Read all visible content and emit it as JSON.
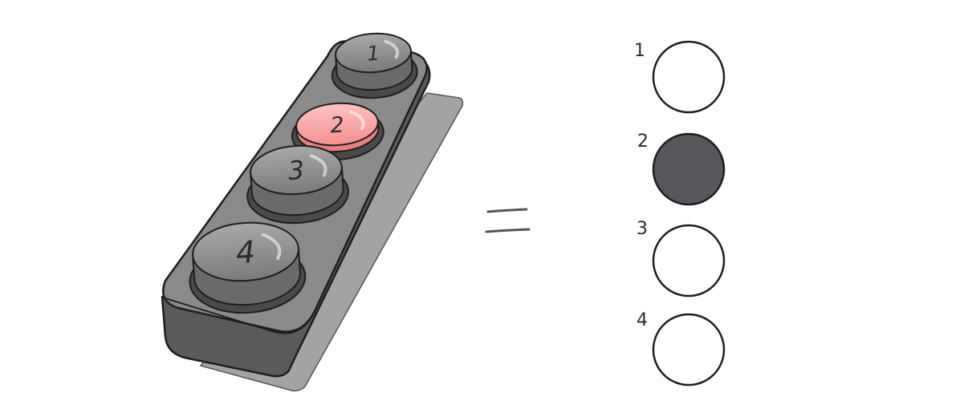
{
  "keypad": {
    "buttons": [
      {
        "label": "1",
        "pressed": false
      },
      {
        "label": "2",
        "pressed": true
      },
      {
        "label": "3",
        "pressed": false
      },
      {
        "label": "4",
        "pressed": false
      }
    ],
    "pressed_color": "#f7a0a0",
    "button_color": "#8e8e8e",
    "body_color": "#6a6a6a"
  },
  "equals_symbol": "=",
  "indicators": [
    {
      "label": "1",
      "state": "off"
    },
    {
      "label": "2",
      "state": "on"
    },
    {
      "label": "3",
      "state": "off"
    },
    {
      "label": "4",
      "state": "off"
    }
  ],
  "indicator_on_color": "#55575a",
  "indicator_off_color": "#ffffff"
}
